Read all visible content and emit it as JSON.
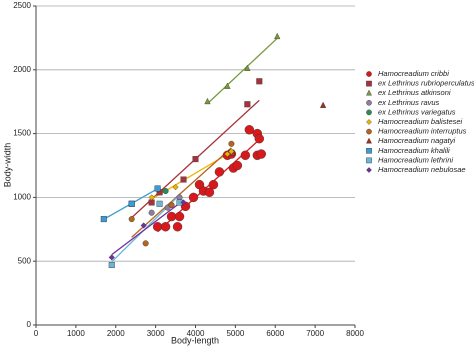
{
  "chart_data": {
    "type": "scatter",
    "xlabel": "Body-length",
    "ylabel": "Body-width",
    "xlim": [
      0,
      8000
    ],
    "ylim": [
      0,
      2500
    ],
    "xticks": [
      0,
      1000,
      2000,
      3000,
      4000,
      5000,
      6000,
      7000,
      8000
    ],
    "yticks": [
      0,
      500,
      1000,
      1500,
      2000,
      2500
    ],
    "grid": true,
    "legend": "right",
    "series": [
      {
        "name": "Hamocreadium cribbi",
        "color": "#d7191c",
        "marker": "circle",
        "trendline": true,
        "x": [
          3050,
          3250,
          3550,
          3400,
          3600,
          3950,
          4100,
          4200,
          4450,
          4600,
          4800,
          4950,
          5050,
          5250,
          5350,
          5550,
          5550,
          5600,
          5650,
          3750,
          4350,
          4900
        ],
        "y": [
          770,
          770,
          770,
          850,
          850,
          1000,
          1100,
          1050,
          1100,
          1200,
          1330,
          1230,
          1250,
          1330,
          1530,
          1500,
          1330,
          1460,
          1340,
          930,
          1040,
          1340
        ]
      },
      {
        "name": "ex Lethrinus rubrioperculatus",
        "color": "#a8323b",
        "marker": "square",
        "trendline": true,
        "x": [
          2400,
          2900,
          3100,
          3700,
          4000,
          4900,
          5300,
          5600
        ],
        "y": [
          950,
          960,
          1040,
          1140,
          1300,
          1350,
          1730,
          1910
        ]
      },
      {
        "name": "ex Lethrinus atkinsoni",
        "color": "#7a9a3a",
        "marker": "triangle",
        "trendline": true,
        "x": [
          4300,
          4800,
          5300,
          6050
        ],
        "y": [
          1750,
          1870,
          2010,
          2260
        ]
      },
      {
        "name": "ex Lethrinus ravus",
        "color": "#8a7fa0",
        "marker": "circle",
        "trendline": false,
        "x": [
          2900,
          3300,
          3600
        ],
        "y": [
          880,
          920,
          1000
        ]
      },
      {
        "name": "ex Lethrinus variegatus",
        "color": "#2e8b57",
        "marker": "circle",
        "trendline": false,
        "x": [
          3050,
          3250
        ],
        "y": [
          1070,
          1050
        ]
      },
      {
        "name": "Hamocreadium balistesei",
        "color": "#f0b400",
        "marker": "diamond",
        "trendline": true,
        "x": [
          2900,
          3500,
          4800,
          4900
        ],
        "y": [
          1000,
          1080,
          1340,
          1360
        ]
      },
      {
        "name": "Hamocreadium interruptus",
        "color": "#b5651d",
        "marker": "circle",
        "trendline": true,
        "x": [
          2400,
          2750,
          3400,
          4900
        ],
        "y": [
          830,
          640,
          940,
          1420
        ]
      },
      {
        "name": "Hamocreadium nagatyi",
        "color": "#a0301e",
        "marker": "triangle",
        "trendline": false,
        "x": [
          7200
        ],
        "y": [
          1720
        ]
      },
      {
        "name": "Hamocreadium khalili",
        "color": "#3a9bd5",
        "marker": "square",
        "trendline": true,
        "x": [
          1700,
          2400,
          3050
        ],
        "y": [
          830,
          950,
          1070
        ]
      },
      {
        "name": "Hamocreadium lethrini",
        "color": "#6ab5d8",
        "marker": "square",
        "trendline": true,
        "x": [
          1900,
          3100,
          3600
        ],
        "y": [
          470,
          950,
          960
        ]
      },
      {
        "name": "Hamocreadium nebulosae",
        "color": "#7030a0",
        "marker": "diamond",
        "trendline": true,
        "x": [
          1900,
          2700,
          3700
        ],
        "y": [
          530,
          780,
          960
        ]
      }
    ]
  }
}
